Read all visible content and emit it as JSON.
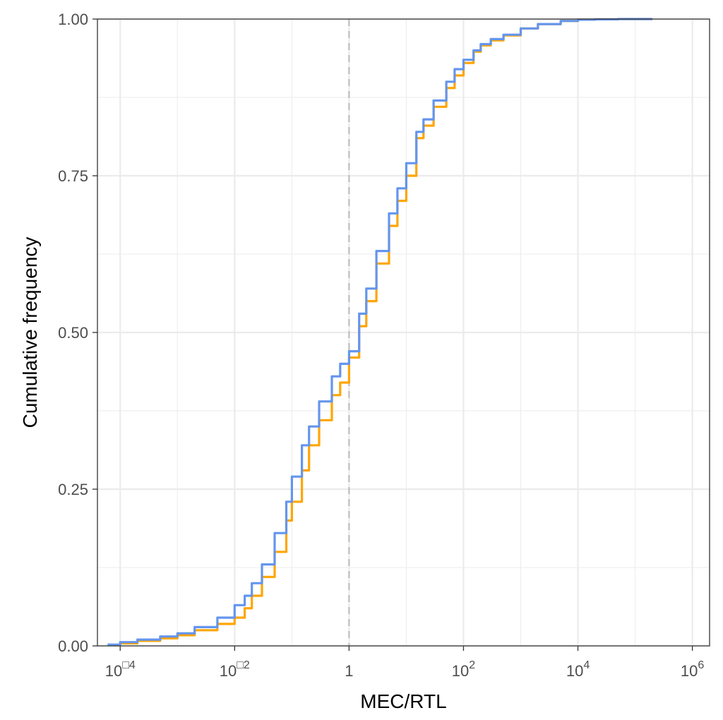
{
  "chart_data": {
    "type": "line",
    "xlabel": "MEC/RTL",
    "ylabel": "Cumulative frequency",
    "xscale": "log10",
    "xlim": [
      4e-05,
      2000000
    ],
    "ylim": [
      0,
      1
    ],
    "grid": true,
    "legend": "none",
    "colors": {
      "series_a": "#6495ED",
      "series_b": "#FFA500",
      "reference_line": "#BEBEBE",
      "grid": "#EBEBEB",
      "panel_border": "#333333"
    },
    "x_ticks": [
      {
        "value": 0.0001,
        "base": "10",
        "exp": "□4"
      },
      {
        "value": 0.01,
        "base": "10",
        "exp": "□2"
      },
      {
        "value": 1,
        "base": "1",
        "exp": ""
      },
      {
        "value": 100,
        "base": "10",
        "exp": "2"
      },
      {
        "value": 10000,
        "base": "10",
        "exp": "4"
      },
      {
        "value": 1000000,
        "base": "10",
        "exp": "6"
      }
    ],
    "y_ticks": [
      "0.00",
      "0.25",
      "0.50",
      "0.75",
      "1.00"
    ],
    "reference_x": 1,
    "series": [
      {
        "color": "#6495ED",
        "x": [
          6e-05,
          0.0001,
          0.0002,
          0.0005,
          0.001,
          0.002,
          0.005,
          0.01,
          0.015,
          0.02,
          0.03,
          0.05,
          0.08,
          0.1,
          0.15,
          0.2,
          0.3,
          0.5,
          0.7,
          1,
          1.5,
          2,
          3,
          5,
          7,
          10,
          15,
          20,
          30,
          50,
          70,
          100,
          150,
          200,
          300,
          500,
          1000,
          2000,
          5000,
          10000,
          20000,
          50000,
          100000,
          200000
        ],
        "y": [
          0.002,
          0.006,
          0.01,
          0.015,
          0.02,
          0.03,
          0.045,
          0.065,
          0.08,
          0.1,
          0.13,
          0.18,
          0.23,
          0.27,
          0.32,
          0.35,
          0.39,
          0.43,
          0.45,
          0.47,
          0.53,
          0.57,
          0.63,
          0.69,
          0.73,
          0.77,
          0.82,
          0.84,
          0.87,
          0.9,
          0.92,
          0.935,
          0.95,
          0.96,
          0.968,
          0.975,
          0.985,
          0.992,
          0.997,
          0.999,
          0.9995,
          1,
          1,
          1
        ]
      },
      {
        "color": "#FFA500",
        "x": [
          0.0001,
          0.0002,
          0.0005,
          0.001,
          0.002,
          0.005,
          0.01,
          0.015,
          0.02,
          0.03,
          0.05,
          0.08,
          0.1,
          0.15,
          0.2,
          0.3,
          0.5,
          0.7,
          1,
          1.5,
          2,
          3,
          5,
          7,
          10,
          15,
          20,
          30,
          50,
          70,
          100,
          150,
          200,
          300,
          500,
          1000,
          2000,
          5000,
          10000,
          20000,
          50000,
          100000,
          200000
        ],
        "y": [
          0.004,
          0.008,
          0.012,
          0.017,
          0.025,
          0.035,
          0.045,
          0.06,
          0.08,
          0.11,
          0.15,
          0.2,
          0.23,
          0.28,
          0.32,
          0.36,
          0.4,
          0.42,
          0.46,
          0.51,
          0.55,
          0.61,
          0.67,
          0.71,
          0.75,
          0.81,
          0.83,
          0.86,
          0.89,
          0.91,
          0.93,
          0.948,
          0.958,
          0.966,
          0.974,
          0.985,
          0.992,
          0.997,
          0.999,
          0.9995,
          1,
          1,
          1
        ]
      }
    ]
  }
}
